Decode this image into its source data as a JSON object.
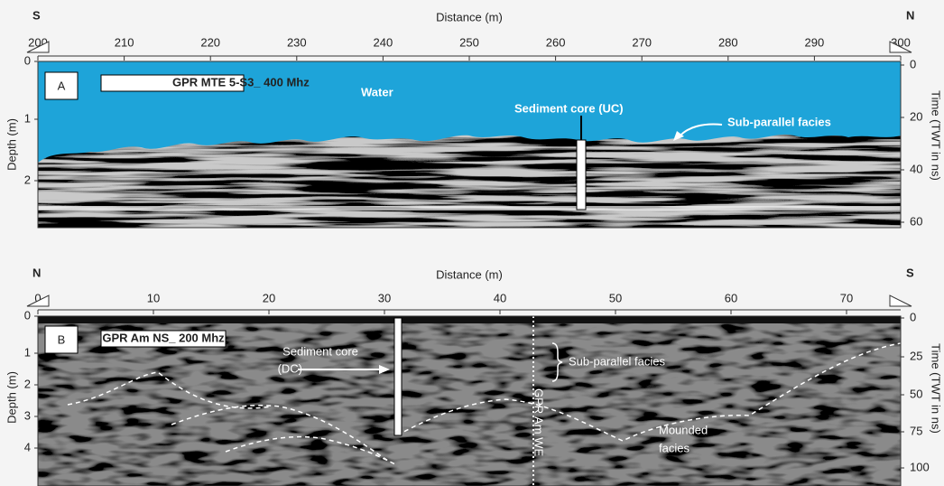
{
  "panel_a": {
    "label": "A",
    "title": "GPR MTE 5-S3_ 400 Mhz",
    "x_axis_title": "Distance (m)",
    "x_ticks": [
      "200",
      "210",
      "220",
      "230",
      "240",
      "250",
      "260",
      "270",
      "280",
      "290",
      "300"
    ],
    "left_end": "S",
    "right_end": "N",
    "y_axis_title": "Depth (m)",
    "y_ticks": [
      "0",
      "1",
      "2"
    ],
    "y2_axis_title": "Time (TWT in ns)",
    "y2_ticks": [
      "0",
      "20",
      "40",
      "60"
    ],
    "annotations": [
      "Water",
      "Sediment core (UC)",
      "Sub-parallel facies"
    ]
  },
  "panel_b": {
    "label": "B",
    "title": "GPR Am NS_ 200 Mhz",
    "x_axis_title": "Distance (m)",
    "x_ticks": [
      "0",
      "10",
      "20",
      "30",
      "40",
      "50",
      "60",
      "70"
    ],
    "left_end": "N",
    "right_end": "S",
    "y_axis_title": "Depth (m)",
    "y_ticks": [
      "0",
      "1",
      "2",
      "3",
      "4"
    ],
    "y2_axis_title": "Time (TWT in ns)",
    "y2_ticks": [
      "0",
      "25",
      "50",
      "75",
      "100"
    ],
    "annotations": [
      "Sediment core",
      "(DC)",
      "Sub-parallel facies",
      "Mounded",
      "facies",
      "GPR Am WE"
    ]
  }
}
